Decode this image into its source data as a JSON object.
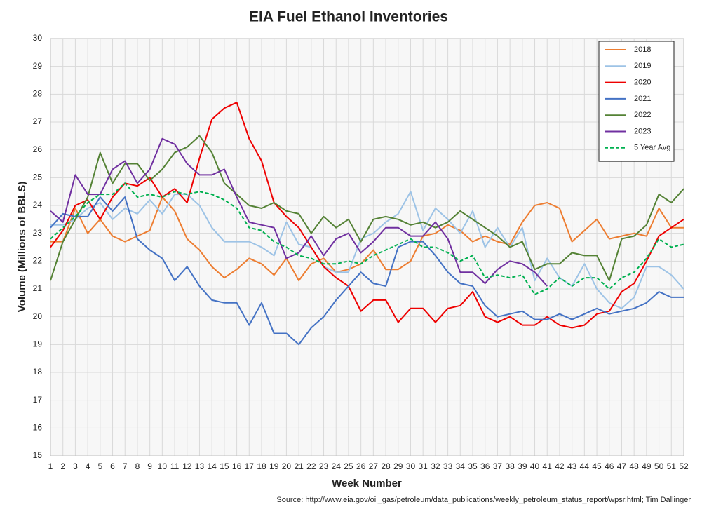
{
  "chart_data": {
    "type": "line",
    "title": "EIA Fuel Ethanol Inventories",
    "x_label": "Week Number",
    "y_label": "Volume (Millions of BBLS)",
    "source": "Source: http://www.eia.gov/oil_gas/petroleum/data_publications/weekly_petroleum_status_report/wpsr.html; Tim Dallinger",
    "x": [
      1,
      2,
      3,
      4,
      5,
      6,
      7,
      8,
      9,
      10,
      11,
      12,
      13,
      14,
      15,
      16,
      17,
      18,
      19,
      20,
      21,
      22,
      23,
      24,
      25,
      26,
      27,
      28,
      29,
      30,
      31,
      32,
      33,
      34,
      35,
      36,
      37,
      38,
      39,
      40,
      41,
      42,
      43,
      44,
      45,
      46,
      47,
      48,
      49,
      50,
      51,
      52
    ],
    "xlim": [
      1,
      52
    ],
    "xticks": [
      1,
      2,
      3,
      4,
      5,
      6,
      7,
      8,
      9,
      10,
      11,
      12,
      13,
      14,
      15,
      16,
      17,
      18,
      19,
      20,
      21,
      22,
      23,
      24,
      25,
      26,
      27,
      28,
      29,
      30,
      31,
      32,
      33,
      34,
      35,
      36,
      37,
      38,
      39,
      40,
      41,
      42,
      43,
      44,
      45,
      46,
      47,
      48,
      49,
      50,
      51,
      52
    ],
    "ylim": [
      15,
      30
    ],
    "yticks": [
      15,
      16,
      17,
      18,
      19,
      20,
      21,
      22,
      23,
      24,
      25,
      26,
      27,
      28,
      29,
      30
    ],
    "grid": true,
    "legend": "upper right",
    "series": [
      {
        "name": "2018",
        "color": "#ed7d31",
        "values": [
          22.7,
          22.7,
          23.9,
          23.0,
          23.5,
          22.9,
          22.7,
          22.9,
          23.1,
          24.3,
          23.8,
          22.8,
          22.4,
          21.8,
          21.4,
          21.7,
          22.1,
          21.9,
          21.5,
          22.1,
          21.3,
          21.9,
          22.1,
          21.6,
          21.7,
          21.9,
          22.4,
          21.7,
          21.7,
          22.0,
          22.9,
          23.0,
          23.3,
          23.1,
          22.7,
          22.9,
          22.7,
          22.6,
          23.4,
          24.0,
          24.1,
          23.9,
          22.7,
          23.1,
          23.5,
          22.8,
          22.9,
          23.0,
          22.9,
          23.9,
          23.2,
          23.2
        ]
      },
      {
        "name": "2019",
        "color": "#9dc3e6",
        "values": [
          23.3,
          23.3,
          23.5,
          23.9,
          24.1,
          23.5,
          23.9,
          23.7,
          24.2,
          23.7,
          24.4,
          24.4,
          24.0,
          23.2,
          22.7,
          22.7,
          22.7,
          22.5,
          22.2,
          23.4,
          22.6,
          22.5,
          21.8,
          21.6,
          21.6,
          22.8,
          23.0,
          23.4,
          23.7,
          24.5,
          23.1,
          23.9,
          23.5,
          23.0,
          23.8,
          22.5,
          23.2,
          22.5,
          23.2,
          21.3,
          22.1,
          21.4,
          21.1,
          21.9,
          21.0,
          20.5,
          20.3,
          20.7,
          21.8,
          21.8,
          21.5,
          21.0
        ]
      },
      {
        "name": "2020",
        "color": "#ee0000",
        "values": [
          22.5,
          23.1,
          24.0,
          24.2,
          23.5,
          24.3,
          24.8,
          24.7,
          25.0,
          24.3,
          24.6,
          24.1,
          25.7,
          27.1,
          27.5,
          27.7,
          26.4,
          25.6,
          24.1,
          23.6,
          23.2,
          22.5,
          21.8,
          21.4,
          21.1,
          20.2,
          20.6,
          20.6,
          19.8,
          20.3,
          20.3,
          19.8,
          20.3,
          20.4,
          20.9,
          20.0,
          19.8,
          20.0,
          19.7,
          19.7,
          20.0,
          19.7,
          19.6,
          19.7,
          20.1,
          20.2,
          20.9,
          21.2,
          22.0,
          22.9,
          23.2,
          23.5
        ]
      },
      {
        "name": "2021",
        "color": "#4472c4",
        "values": [
          23.2,
          23.7,
          23.6,
          23.6,
          24.3,
          23.8,
          24.3,
          22.8,
          22.4,
          22.1,
          21.3,
          21.8,
          21.1,
          20.6,
          20.5,
          20.5,
          19.7,
          20.5,
          19.4,
          19.4,
          19.0,
          19.6,
          20.0,
          20.6,
          21.1,
          21.6,
          21.2,
          21.1,
          22.5,
          22.7,
          22.7,
          22.2,
          21.6,
          21.2,
          21.1,
          20.4,
          20.0,
          20.1,
          20.2,
          19.9,
          19.9,
          20.1,
          19.9,
          20.1,
          20.3,
          20.1,
          20.2,
          20.3,
          20.5,
          20.9,
          20.7,
          20.7
        ]
      },
      {
        "name": "2022",
        "color": "#548235",
        "values": [
          21.3,
          22.7,
          23.5,
          24.3,
          25.9,
          24.8,
          25.5,
          25.5,
          24.9,
          25.3,
          25.9,
          26.1,
          26.5,
          25.9,
          24.8,
          24.4,
          24.0,
          23.9,
          24.1,
          23.8,
          23.7,
          23.0,
          23.6,
          23.2,
          23.5,
          22.7,
          23.5,
          23.6,
          23.5,
          23.3,
          23.4,
          23.2,
          23.4,
          23.8,
          23.5,
          23.2,
          22.9,
          22.5,
          22.7,
          21.7,
          21.9,
          21.9,
          22.3,
          22.2,
          22.2,
          21.3,
          22.8,
          22.9,
          23.3,
          24.4,
          24.1,
          24.6
        ]
      },
      {
        "name": "2023",
        "color": "#7030a0",
        "values": [
          23.8,
          23.4,
          25.1,
          24.4,
          24.4,
          25.3,
          25.6,
          24.8,
          25.3,
          26.4,
          26.2,
          25.5,
          25.1,
          25.1,
          25.3,
          24.3,
          23.4,
          23.3,
          23.2,
          22.1,
          22.3,
          22.9,
          22.2,
          22.8,
          23.0,
          22.3,
          22.7,
          23.2,
          23.2,
          22.9,
          22.9,
          23.4,
          22.8,
          21.6,
          21.6,
          21.2,
          21.7,
          22.0,
          21.9,
          21.6,
          21.1,
          null,
          null,
          null,
          null,
          null,
          null,
          null,
          null,
          null,
          null,
          null
        ]
      },
      {
        "name": "5 Year Avg",
        "color": "#00b050",
        "dashed": true,
        "values": [
          22.8,
          23.2,
          23.6,
          24.1,
          24.4,
          24.4,
          24.8,
          24.3,
          24.4,
          24.3,
          24.5,
          24.4,
          24.5,
          24.4,
          24.2,
          23.9,
          23.2,
          23.1,
          22.7,
          22.5,
          22.2,
          22.1,
          21.9,
          21.9,
          22.0,
          21.9,
          22.2,
          22.4,
          22.6,
          22.8,
          22.5,
          22.5,
          22.3,
          22.0,
          22.2,
          21.4,
          21.5,
          21.4,
          21.5,
          20.8,
          21.0,
          21.4,
          21.1,
          21.4,
          21.4,
          21.0,
          21.4,
          21.6,
          22.1,
          22.8,
          22.5,
          22.6
        ]
      }
    ]
  }
}
